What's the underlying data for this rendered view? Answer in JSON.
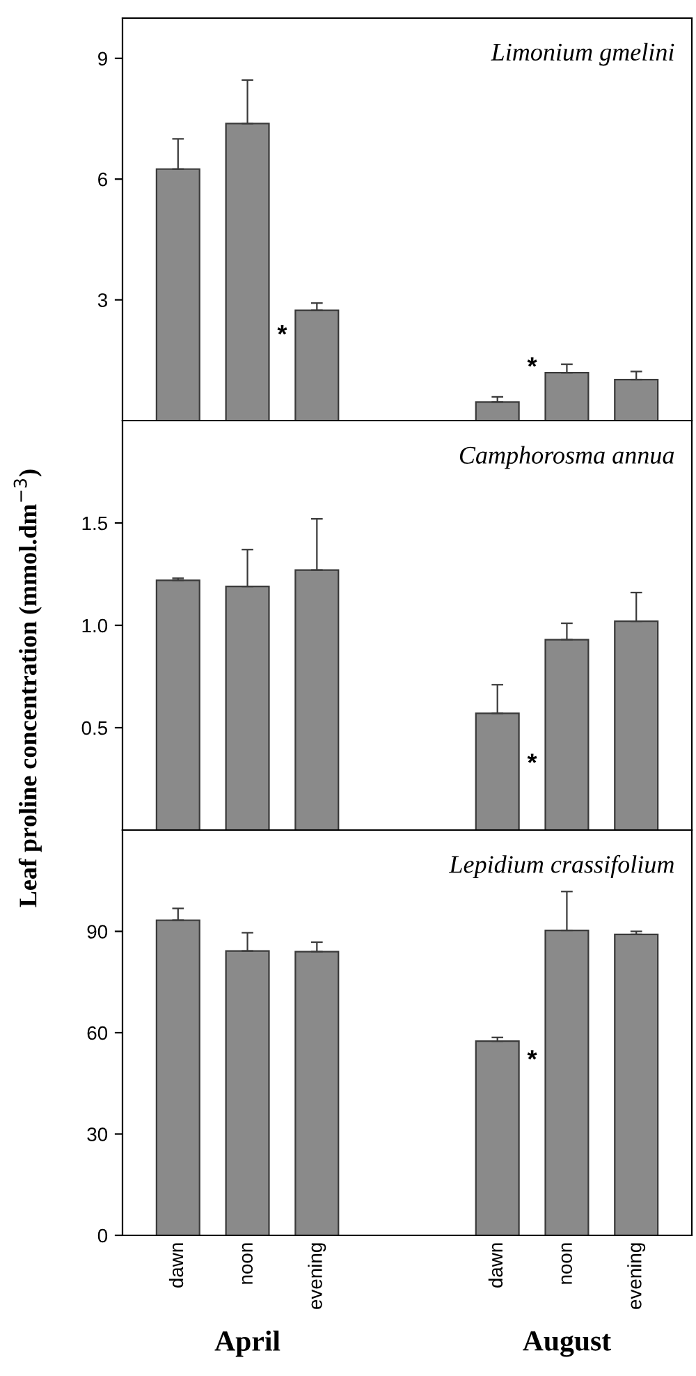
{
  "chart_data": [
    {
      "type": "bar",
      "title": "Limonium gmelini",
      "values": [
        6.25,
        7.38,
        2.74,
        0.46,
        1.19,
        1.02
      ],
      "errors": [
        [
          6.25,
          7.0
        ],
        [
          7.38,
          8.46
        ],
        [
          2.74,
          2.92
        ],
        [
          0.46,
          0.59
        ],
        [
          1.19,
          1.4
        ],
        [
          1.02,
          1.22
        ]
      ],
      "color": "#8a8a8a",
      "ylim": [
        0,
        10
      ],
      "yticks": [
        3,
        6,
        9
      ],
      "tick_labels": "y",
      "grid": false,
      "annotations": [
        "*",
        "*"
      ]
    },
    {
      "type": "bar",
      "title": "Camphorosma annua",
      "ylabel": "Leaf proline concentration (mmol.dm$^{−3}$)",
      "values": [
        1.22,
        1.19,
        1.27,
        0.57,
        0.93,
        1.02
      ],
      "errors": [
        [
          1.22,
          1.23
        ],
        [
          1.19,
          1.37
        ],
        [
          1.27,
          1.52
        ],
        [
          0.57,
          0.71
        ],
        [
          0.93,
          1.01
        ],
        [
          1.02,
          1.16
        ]
      ],
      "color": "#8a8a8a",
      "ylim": [
        0,
        2
      ],
      "yticks": [
        0.5,
        {
          "value": 1,
          "label": "1.0"
        },
        1.5
      ],
      "tick_labels": "y",
      "grid": false,
      "annotations": [
        "*"
      ]
    },
    {
      "type": "bar",
      "title": "Lepidium crassifolium",
      "categories": [
        "dawn",
        "noon",
        "evening",
        "dawn",
        "noon",
        "evening"
      ],
      "values": [
        93.3,
        84.2,
        84.0,
        57.5,
        90.3,
        89.1
      ],
      "errors": [
        [
          93.3,
          96.8
        ],
        [
          84.2,
          89.6
        ],
        [
          84.0,
          86.8
        ],
        [
          57.5,
          58.6
        ],
        [
          90.3,
          101.8
        ],
        [
          89.1,
          90.0
        ]
      ],
      "color": "#8a8a8a",
      "ylim": [
        0,
        120
      ],
      "yticks": [
        0,
        30,
        60,
        90
      ],
      "grid": false,
      "annotations": [
        "*",
        "April",
        "August"
      ]
    }
  ]
}
